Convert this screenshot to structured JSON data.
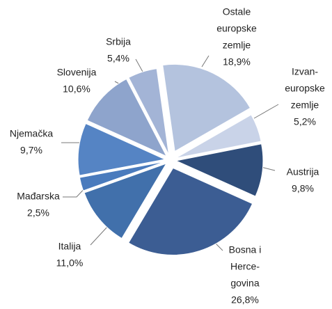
{
  "chart_data": {
    "type": "pie",
    "categories": [
      [
        "Ostale",
        "europske",
        "zemlje"
      ],
      [
        "Izvan-",
        "europske",
        "zemlje"
      ],
      [
        "Austrija"
      ],
      [
        "Bosna i",
        "Herce-",
        "govina"
      ],
      [
        "Italija"
      ],
      [
        "Mađarska"
      ],
      [
        "Njemačka"
      ],
      [
        "Slovenija"
      ],
      [
        "Srbija"
      ]
    ],
    "values": [
      18.9,
      5.2,
      9.8,
      26.8,
      11.0,
      2.5,
      9.7,
      10.6,
      5.4
    ],
    "value_labels": [
      "18,9%",
      "5,2%",
      "9,8%",
      "26,8%",
      "11,0%",
      "2,5%",
      "9,7%",
      "10,6%",
      "5,4%"
    ],
    "colors": [
      "#b4c3de",
      "#c9d3e8",
      "#2f4d7a",
      "#3c5d93",
      "#4170ab",
      "#4a7bbd",
      "#5584c4",
      "#8ea4cc",
      "#a3b4d6"
    ]
  }
}
